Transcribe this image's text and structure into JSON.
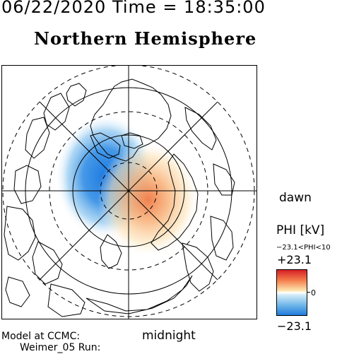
{
  "header": {
    "date_time": "06/22/2020 Time = 18:35:00",
    "title": "Northern Hemisphere"
  },
  "map": {
    "projection": "polar-stereographic",
    "orientation": {
      "right": "dawn",
      "bottom": "midnight"
    },
    "latitude_circles_solid": true,
    "latitude_circles_dashed": true,
    "potential_pattern": {
      "negative_cell": {
        "side": "dusk",
        "color": "#1f7bdc"
      },
      "positive_cell": {
        "side": "dawn",
        "color": "#f47a4a"
      }
    }
  },
  "labels": {
    "dawn": "dawn",
    "midnight": "midnight",
    "model": "Model at CCMC:",
    "run": "Weimer_05 Run:"
  },
  "colorbar": {
    "title": "PHI [kV]",
    "range_text": "−23.1<PHI<10",
    "max": "+23.1",
    "zero": "0",
    "min": "−23.1",
    "colors": [
      "#d71f26",
      "#f47a4a",
      "#fde7b0",
      "#ffffff",
      "#cfe9f6",
      "#6fb6ea",
      "#1f7bdc"
    ]
  }
}
